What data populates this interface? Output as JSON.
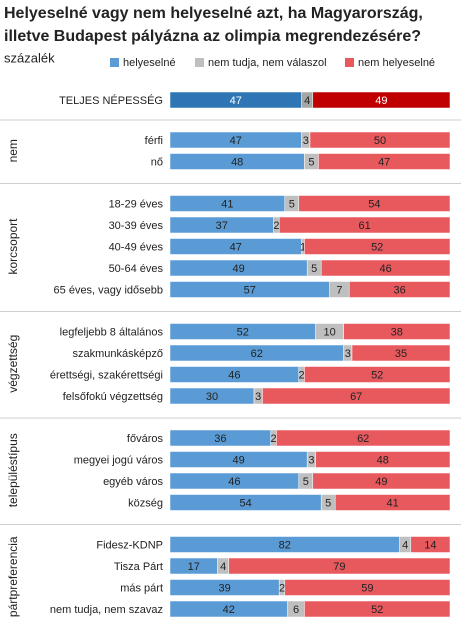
{
  "chart_data": {
    "type": "bar",
    "orientation": "horizontal",
    "stacked": true,
    "title": [
      "Helyeselné vagy nem helyeselné azt, ha Magyarország,",
      "illetve Budapest pályázna az olimpia megrendezésére?"
    ],
    "subtitle": "százalék",
    "legend_position": "top",
    "xlim": [
      0,
      100
    ],
    "series": [
      {
        "name": "helyeselné",
        "color": "#5b9bd5",
        "total_color": "#2e75b6"
      },
      {
        "name": "nem tudja, nem válaszol",
        "color": "#bfbfbf",
        "total_color": "#a6a6a6"
      },
      {
        "name": "nem helyeselné",
        "color": "#e8595e",
        "total_color": "#c00000"
      }
    ],
    "total": {
      "category": "TELJES NÉPESSÉG",
      "values": [
        47,
        4,
        49
      ]
    },
    "groups": [
      {
        "name": "nem",
        "categories": [
          "férfi",
          "nő"
        ],
        "values": [
          [
            47,
            3,
            50
          ],
          [
            48,
            5,
            47
          ]
        ]
      },
      {
        "name": "korcsoport",
        "categories": [
          "18-29 éves",
          "30-39 éves",
          "40-49 éves",
          "50-64 éves",
          "65 éves, vagy idősebb"
        ],
        "values": [
          [
            41,
            5,
            54
          ],
          [
            37,
            2,
            61
          ],
          [
            47,
            1,
            52
          ],
          [
            49,
            5,
            46
          ],
          [
            57,
            7,
            36
          ]
        ]
      },
      {
        "name": "végzettség",
        "categories": [
          "legfeljebb 8 általános",
          "szakmunkásképző",
          "érettségi, szakérettségi",
          "felsőfokú végzettség"
        ],
        "values": [
          [
            52,
            10,
            38
          ],
          [
            62,
            3,
            35
          ],
          [
            46,
            2,
            52
          ],
          [
            30,
            3,
            67
          ]
        ]
      },
      {
        "name": "településtípus",
        "categories": [
          "főváros",
          "megyei jogú város",
          "egyéb város",
          "község"
        ],
        "values": [
          [
            36,
            2,
            62
          ],
          [
            49,
            3,
            48
          ],
          [
            46,
            5,
            49
          ],
          [
            54,
            5,
            41
          ]
        ]
      },
      {
        "name": "pártpreferencia",
        "categories": [
          "Fidesz-KDNP",
          "Tisza Párt",
          "más párt",
          "nem tudja, nem szavaz"
        ],
        "values": [
          [
            82,
            4,
            14
          ],
          [
            17,
            4,
            79
          ],
          [
            39,
            2,
            59
          ],
          [
            42,
            6,
            52
          ]
        ]
      }
    ]
  }
}
